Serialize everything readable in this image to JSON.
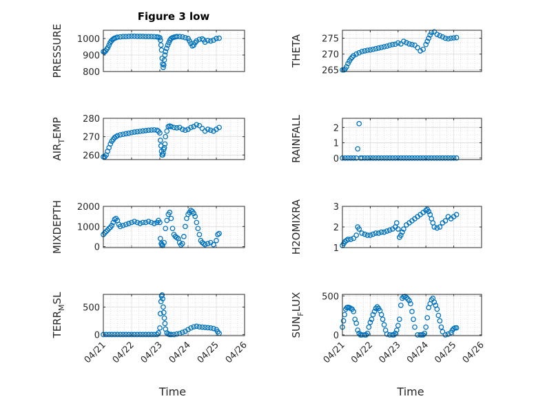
{
  "chart_data": [
    {
      "type": "scatter",
      "title": "Figure 3 low",
      "ylabel": "PRESSURE",
      "ylim": [
        800,
        1050
      ],
      "yticks": [
        "800",
        "900",
        "1000"
      ],
      "series": [
        {
          "x": [
            0.0,
            0.04,
            0.08,
            0.12,
            0.16,
            0.2,
            0.24,
            0.28,
            0.32,
            0.36,
            0.4,
            0.45,
            0.5,
            0.6,
            0.7,
            0.8,
            0.9,
            1.0,
            1.1,
            1.2,
            1.3,
            1.4,
            1.5,
            1.6,
            1.7,
            1.8,
            1.9,
            1.95,
            2.0,
            2.02,
            2.04,
            2.06,
            2.08,
            2.1,
            2.12,
            2.14,
            2.16,
            2.18,
            2.2,
            2.24,
            2.28,
            2.32,
            2.36,
            2.4,
            2.45,
            2.5,
            2.55,
            2.6,
            2.7,
            2.8,
            2.9,
            3.0,
            3.05,
            3.1,
            3.15,
            3.2,
            3.25,
            3.3,
            3.4,
            3.5,
            3.55,
            3.6,
            3.7,
            3.8,
            3.9,
            4.0,
            4.1
          ],
          "y": [
            920,
            918,
            925,
            935,
            945,
            960,
            975,
            985,
            992,
            998,
            1002,
            1005,
            1008,
            1010,
            1012,
            1012,
            1013,
            1014,
            1014,
            1013,
            1013,
            1013,
            1012,
            1012,
            1012,
            1011,
            1010,
            1008,
            1005,
            990,
            960,
            930,
            880,
            845,
            825,
            840,
            870,
            900,
            920,
            940,
            960,
            975,
            990,
            1000,
            1005,
            1008,
            1010,
            1012,
            1012,
            1010,
            1005,
            1000,
            985,
            970,
            955,
            960,
            975,
            985,
            995,
            998,
            992,
            978,
            988,
            985,
            990,
            1000,
            1002
          ]
        }
      ]
    },
    {
      "type": "scatter",
      "ylabel": "THETA",
      "ylim": [
        264.5,
        277.5
      ],
      "yticks": [
        "265",
        "270",
        "275"
      ],
      "series": [
        {
          "x": [
            0.0,
            0.05,
            0.1,
            0.15,
            0.2,
            0.25,
            0.3,
            0.35,
            0.4,
            0.5,
            0.6,
            0.7,
            0.8,
            0.9,
            1.0,
            1.1,
            1.2,
            1.3,
            1.4,
            1.5,
            1.6,
            1.7,
            1.8,
            1.9,
            2.0,
            2.1,
            2.2,
            2.3,
            2.4,
            2.5,
            2.6,
            2.7,
            2.8,
            2.9,
            3.0,
            3.05,
            3.1,
            3.15,
            3.2,
            3.3,
            3.4,
            3.5,
            3.6,
            3.7,
            3.8,
            3.9,
            4.0,
            4.1
          ],
          "y": [
            265,
            265,
            265.3,
            266,
            267,
            267.8,
            268.5,
            269,
            269.5,
            270,
            270.4,
            270.8,
            271,
            271.2,
            271.3,
            271.5,
            271.7,
            271.9,
            272.1,
            272.3,
            272.5,
            272.8,
            273,
            273.1,
            273.5,
            273.2,
            274,
            273.6,
            273.2,
            273,
            272.8,
            272,
            271,
            271.5,
            273,
            274,
            275,
            276,
            276.8,
            277,
            276.2,
            275.8,
            275.4,
            275,
            274.8,
            275,
            275.1,
            275.2
          ]
        }
      ]
    },
    {
      "type": "scatter",
      "ylabel": "AIR",
      "ylabel_sub": "T",
      "ylabel_rest": "EMP",
      "ylim": [
        257.5,
        280
      ],
      "yticks": [
        "260",
        "270",
        "280"
      ],
      "series": [
        {
          "x": [
            0.0,
            0.05,
            0.1,
            0.15,
            0.2,
            0.25,
            0.3,
            0.35,
            0.4,
            0.45,
            0.5,
            0.6,
            0.7,
            0.8,
            0.9,
            1.0,
            1.1,
            1.2,
            1.3,
            1.4,
            1.5,
            1.6,
            1.7,
            1.8,
            1.9,
            1.95,
            2.0,
            2.02,
            2.04,
            2.06,
            2.08,
            2.1,
            2.12,
            2.14,
            2.16,
            2.18,
            2.2,
            2.25,
            2.3,
            2.35,
            2.4,
            2.5,
            2.6,
            2.7,
            2.8,
            2.9,
            3.0,
            3.1,
            3.2,
            3.3,
            3.4,
            3.5,
            3.6,
            3.7,
            3.8,
            3.9,
            4.0,
            4.1
          ],
          "y": [
            259,
            259,
            260,
            262,
            264,
            266,
            267.5,
            268.5,
            269.5,
            270,
            270.5,
            271,
            271.3,
            271.6,
            271.9,
            272.2,
            272.5,
            272.7,
            272.9,
            273.1,
            273.3,
            273.5,
            273.6,
            273.7,
            273.5,
            273,
            272,
            268,
            265,
            262,
            260,
            260,
            261,
            263,
            264,
            266,
            270,
            273,
            275.5,
            275.8,
            275.5,
            275,
            274.8,
            275,
            274,
            273.5,
            274,
            275,
            275.5,
            276.5,
            276,
            274.5,
            273,
            274,
            273.5,
            273,
            274,
            275
          ]
        }
      ]
    },
    {
      "type": "scatter",
      "ylabel": "RAINFALL",
      "ylim": [
        -0.1,
        2.6
      ],
      "yticks": [
        "0",
        "1",
        "2"
      ],
      "series": [
        {
          "x": [
            0.0,
            0.1,
            0.2,
            0.3,
            0.4,
            0.5,
            0.55,
            0.6,
            0.65,
            0.7,
            0.8,
            0.9,
            1.0,
            1.1,
            1.2,
            1.3,
            1.4,
            1.5,
            1.6,
            1.7,
            1.8,
            1.9,
            2.0,
            2.1,
            2.2,
            2.3,
            2.4,
            2.5,
            2.6,
            2.7,
            2.8,
            2.9,
            3.0,
            3.1,
            3.2,
            3.3,
            3.4,
            3.5,
            3.6,
            3.7,
            3.8,
            3.9,
            4.0,
            4.1
          ],
          "y": [
            0,
            0,
            0,
            0,
            0,
            0,
            0.6,
            2.25,
            0,
            0,
            0,
            0,
            0,
            0,
            0,
            0,
            0,
            0,
            0,
            0,
            0,
            0,
            0,
            0,
            0,
            0,
            0,
            0,
            0,
            0,
            0,
            0,
            0,
            0,
            0,
            0,
            0,
            0,
            0,
            0,
            0,
            0,
            0,
            0
          ]
        }
      ]
    },
    {
      "type": "scatter",
      "ylabel": "MIXDEPTH",
      "ylim": [
        -50,
        2000
      ],
      "yticks": [
        "0",
        "1000",
        "2000"
      ],
      "series": [
        {
          "x": [
            0.0,
            0.05,
            0.1,
            0.15,
            0.2,
            0.25,
            0.3,
            0.35,
            0.4,
            0.45,
            0.5,
            0.55,
            0.6,
            0.7,
            0.8,
            0.9,
            1.0,
            1.1,
            1.2,
            1.3,
            1.4,
            1.5,
            1.6,
            1.7,
            1.8,
            1.9,
            1.95,
            2.0,
            2.02,
            2.05,
            2.08,
            2.1,
            2.15,
            2.2,
            2.25,
            2.3,
            2.35,
            2.4,
            2.45,
            2.5,
            2.55,
            2.6,
            2.65,
            2.7,
            2.75,
            2.8,
            2.85,
            2.9,
            2.95,
            3.0,
            3.05,
            3.1,
            3.15,
            3.2,
            3.25,
            3.3,
            3.35,
            3.4,
            3.45,
            3.5,
            3.55,
            3.6,
            3.7,
            3.8,
            3.9,
            4.0,
            4.05,
            4.1
          ],
          "y": [
            600,
            680,
            750,
            820,
            900,
            960,
            1050,
            1200,
            1350,
            1400,
            1300,
            1100,
            1000,
            1050,
            1100,
            1150,
            1200,
            1250,
            1200,
            1150,
            1200,
            1200,
            1250,
            1200,
            1150,
            1200,
            1300,
            1200,
            400,
            150,
            100,
            50,
            200,
            900,
            1300,
            1600,
            1700,
            1400,
            900,
            600,
            500,
            450,
            400,
            200,
            80,
            150,
            500,
            1000,
            1400,
            1600,
            1700,
            1800,
            1750,
            1650,
            1500,
            1200,
            900,
            600,
            300,
            200,
            150,
            100,
            150,
            200,
            100,
            300,
            600,
            650
          ]
        }
      ]
    },
    {
      "type": "scatter",
      "ylabel": "H2OMIXRA",
      "ylim": [
        1,
        3
      ],
      "yticks": [
        "1",
        "2",
        "3"
      ],
      "series": [
        {
          "x": [
            0.0,
            0.05,
            0.1,
            0.15,
            0.2,
            0.3,
            0.4,
            0.5,
            0.55,
            0.6,
            0.7,
            0.8,
            0.9,
            1.0,
            1.1,
            1.2,
            1.3,
            1.4,
            1.5,
            1.6,
            1.7,
            1.8,
            1.9,
            1.95,
            2.0,
            2.05,
            2.1,
            2.15,
            2.2,
            2.3,
            2.4,
            2.5,
            2.6,
            2.7,
            2.8,
            2.9,
            3.0,
            3.05,
            3.1,
            3.15,
            3.2,
            3.25,
            3.3,
            3.4,
            3.5,
            3.6,
            3.7,
            3.8,
            3.9,
            4.0,
            4.1
          ],
          "y": [
            1.1,
            1.2,
            1.3,
            1.35,
            1.4,
            1.4,
            1.45,
            1.6,
            2.0,
            1.9,
            1.7,
            1.65,
            1.6,
            1.6,
            1.65,
            1.7,
            1.7,
            1.75,
            1.75,
            1.8,
            1.85,
            1.9,
            2.0,
            2.2,
            1.9,
            1.5,
            1.6,
            1.75,
            1.9,
            2.1,
            2.2,
            2.3,
            2.4,
            2.5,
            2.6,
            2.7,
            2.8,
            2.85,
            2.75,
            2.6,
            2.4,
            2.2,
            2.0,
            1.95,
            2.0,
            2.2,
            2.3,
            2.5,
            2.4,
            2.5,
            2.6
          ]
        }
      ]
    },
    {
      "type": "scatter",
      "ylabel": "TERR",
      "ylabel_sub": "M",
      "ylabel_rest": "SL",
      "xlabel": "Time",
      "ylim": [
        -20,
        730
      ],
      "yticks": [
        "0",
        "500"
      ],
      "xticks": [
        "04/21",
        "04/22",
        "04/23",
        "04/24",
        "04/25",
        "04/26"
      ],
      "series": [
        {
          "x": [
            0.0,
            0.1,
            0.2,
            0.3,
            0.4,
            0.5,
            0.6,
            0.7,
            0.8,
            0.9,
            1.0,
            1.1,
            1.2,
            1.3,
            1.4,
            1.5,
            1.6,
            1.7,
            1.8,
            1.9,
            1.95,
            2.0,
            2.02,
            2.04,
            2.06,
            2.08,
            2.1,
            2.12,
            2.14,
            2.16,
            2.18,
            2.2,
            2.25,
            2.3,
            2.35,
            2.4,
            2.5,
            2.6,
            2.7,
            2.8,
            2.9,
            3.0,
            3.1,
            3.2,
            3.3,
            3.4,
            3.5,
            3.6,
            3.7,
            3.8,
            3.9,
            4.0,
            4.05,
            4.1
          ],
          "y": [
            0,
            0,
            0,
            0,
            0,
            0,
            0,
            0,
            0,
            0,
            0,
            0,
            0,
            0,
            0,
            0,
            0,
            0,
            0,
            0,
            30,
            120,
            380,
            600,
            700,
            720,
            650,
            500,
            400,
            300,
            200,
            100,
            30,
            10,
            0,
            0,
            0,
            10,
            20,
            40,
            60,
            90,
            120,
            140,
            150,
            140,
            135,
            130,
            125,
            120,
            110,
            90,
            50,
            20
          ]
        }
      ]
    },
    {
      "type": "scatter",
      "ylabel": "SUN",
      "ylabel_sub": "F",
      "ylabel_rest": "LUX",
      "xlabel": "Time",
      "ylim": [
        -10,
        520
      ],
      "yticks": [
        "0",
        "500"
      ],
      "xticks": [
        "04/21",
        "04/22",
        "04/23",
        "04/24",
        "04/25",
        "04/26"
      ],
      "series": [
        {
          "x": [
            0.0,
            0.04,
            0.08,
            0.12,
            0.16,
            0.2,
            0.25,
            0.3,
            0.35,
            0.4,
            0.45,
            0.5,
            0.55,
            0.6,
            0.65,
            0.7,
            0.8,
            0.85,
            0.9,
            0.95,
            1.0,
            1.05,
            1.1,
            1.15,
            1.2,
            1.25,
            1.3,
            1.35,
            1.4,
            1.45,
            1.5,
            1.55,
            1.6,
            1.7,
            1.8,
            1.85,
            1.9,
            1.95,
            2.0,
            2.05,
            2.1,
            2.15,
            2.2,
            2.25,
            2.3,
            2.35,
            2.4,
            2.45,
            2.5,
            2.55,
            2.6,
            2.7,
            2.8,
            2.85,
            2.9,
            2.95,
            3.0,
            3.05,
            3.1,
            3.15,
            3.2,
            3.25,
            3.3,
            3.35,
            3.4,
            3.45,
            3.5,
            3.55,
            3.6,
            3.7,
            3.8,
            3.9,
            3.95,
            4.0,
            4.05,
            4.1
          ],
          "y": [
            100,
            180,
            260,
            330,
            350,
            355,
            350,
            340,
            330,
            300,
            200,
            150,
            60,
            20,
            0,
            0,
            0,
            0,
            20,
            100,
            160,
            200,
            260,
            300,
            340,
            360,
            340,
            310,
            260,
            200,
            130,
            60,
            10,
            0,
            0,
            0,
            20,
            60,
            120,
            200,
            380,
            470,
            490,
            495,
            480,
            460,
            440,
            400,
            300,
            200,
            100,
            0,
            0,
            0,
            0,
            20,
            100,
            220,
            350,
            400,
            450,
            470,
            420,
            380,
            330,
            250,
            180,
            100,
            40,
            0,
            10,
            30,
            60,
            80,
            90,
            90
          ]
        }
      ]
    }
  ]
}
